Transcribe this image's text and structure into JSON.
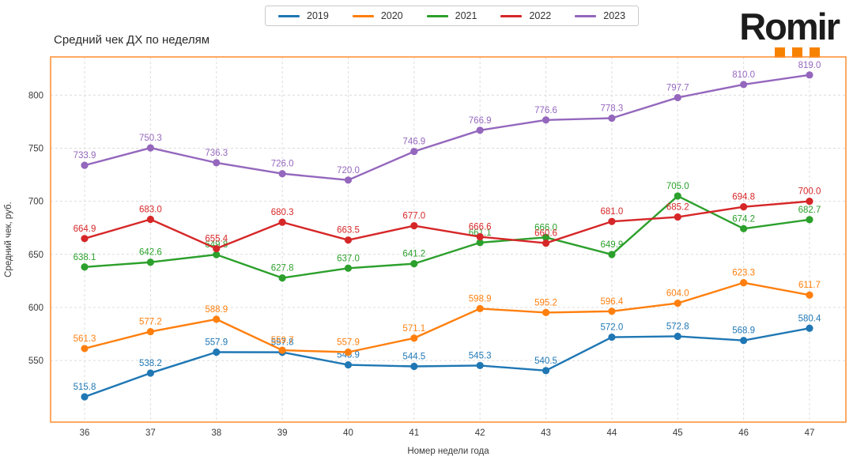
{
  "title": "Средний чек ДХ по неделям",
  "logo": {
    "text": "Romir",
    "dot_color": "#f78200",
    "dot_count": 3
  },
  "colors": {
    "plot_border": "#ff8c2e",
    "grid": "#dcdcdc",
    "text": "#3a3a3a"
  },
  "legend": {
    "position": "top-center",
    "entries": [
      "2019",
      "2020",
      "2021",
      "2022",
      "2023"
    ]
  },
  "chart_data": {
    "type": "line",
    "title": "Средний чек ДХ по неделям",
    "xlabel": "Номер недели года",
    "ylabel": "Средний чек, руб.",
    "categories": [
      36,
      37,
      38,
      39,
      40,
      41,
      42,
      43,
      44,
      45,
      46,
      47
    ],
    "yticks": [
      550,
      600,
      650,
      700,
      750,
      800
    ],
    "ylim": [
      492,
      836
    ],
    "grid": true,
    "legend_position": "top-center",
    "marker": "circle",
    "data_labels": true,
    "series": [
      {
        "name": "2019",
        "color": "#1f77b4",
        "values": [
          515.8,
          538.2,
          557.9,
          557.8,
          545.9,
          544.5,
          545.3,
          540.5,
          572.0,
          572.8,
          568.9,
          580.4
        ]
      },
      {
        "name": "2020",
        "color": "#ff7f0e",
        "values": [
          561.3,
          577.2,
          588.9,
          559.7,
          557.9,
          571.1,
          598.9,
          595.2,
          596.4,
          604.0,
          623.3,
          611.7
        ]
      },
      {
        "name": "2021",
        "color": "#2ca02c",
        "values": [
          638.1,
          642.6,
          649.8,
          627.8,
          637.0,
          641.2,
          661.1,
          666.0,
          649.9,
          705.0,
          674.2,
          682.7
        ]
      },
      {
        "name": "2022",
        "color": "#d62728",
        "values": [
          664.9,
          683.0,
          655.4,
          680.3,
          663.5,
          677.0,
          666.6,
          660.6,
          681.0,
          685.2,
          694.8,
          700.0
        ]
      },
      {
        "name": "2023",
        "color": "#9467bd",
        "values": [
          733.9,
          750.3,
          736.3,
          726.0,
          720.0,
          746.9,
          766.9,
          776.6,
          778.3,
          797.7,
          810.0,
          819.0
        ]
      }
    ]
  }
}
